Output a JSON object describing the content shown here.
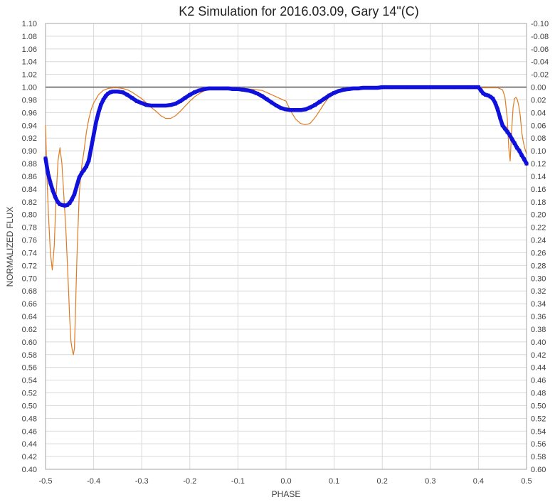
{
  "chart_data": {
    "type": "scatter",
    "title": "K2 Simulation for 2016.03.09, Gary 14\"(C)",
    "xlabel": "PHASE",
    "ylabel": "NORMALIZED FLUX",
    "xlim": [
      -0.5,
      0.5
    ],
    "ylim": [
      0.4,
      1.1
    ],
    "y2lim": [
      0.6,
      -0.1
    ],
    "grid": true,
    "reference_line": 1.0,
    "x_ticks": [
      "-0.5",
      "-0.4",
      "-0.3",
      "-0.2",
      "-0.1",
      "0.0",
      "0.1",
      "0.2",
      "0.3",
      "0.4",
      "0.5"
    ],
    "y_ticks": [
      "1.10",
      "1.08",
      "1.06",
      "1.04",
      "1.02",
      "1.00",
      "0.98",
      "0.96",
      "0.94",
      "0.92",
      "0.90",
      "0.88",
      "0.86",
      "0.84",
      "0.82",
      "0.80",
      "0.78",
      "0.76",
      "0.74",
      "0.72",
      "0.70",
      "0.68",
      "0.66",
      "0.64",
      "0.62",
      "0.60",
      "0.58",
      "0.56",
      "0.54",
      "0.52",
      "0.50",
      "0.48",
      "0.46",
      "0.44",
      "0.42",
      "0.40"
    ],
    "y2_ticks": [
      "-0.10",
      "-0.08",
      "-0.06",
      "-0.04",
      "-0.02",
      "0.00",
      "0.02",
      "0.04",
      "0.06",
      "0.08",
      "0.10",
      "0.12",
      "0.14",
      "0.16",
      "0.18",
      "0.20",
      "0.22",
      "0.24",
      "0.26",
      "0.28",
      "0.30",
      "0.32",
      "0.34",
      "0.36",
      "0.38",
      "0.40",
      "0.42",
      "0.44",
      "0.46",
      "0.48",
      "0.50",
      "0.52",
      "0.54",
      "0.56",
      "0.58",
      "0.60"
    ],
    "series": [
      {
        "color": "#e07b22",
        "style": "thin-line",
        "x": [
          -0.5,
          -0.497,
          -0.494,
          -0.49,
          -0.486,
          -0.482,
          -0.478,
          -0.474,
          -0.47,
          -0.466,
          -0.462,
          -0.458,
          -0.455,
          -0.452,
          -0.45,
          -0.447,
          -0.444,
          -0.442,
          -0.44,
          -0.438,
          -0.436,
          -0.434,
          -0.432,
          -0.43,
          -0.427,
          -0.424,
          -0.42,
          -0.415,
          -0.41,
          -0.405,
          -0.4,
          -0.39,
          -0.38,
          -0.37,
          -0.36,
          -0.35,
          -0.34,
          -0.33,
          -0.32,
          -0.31,
          -0.3,
          -0.29,
          -0.28,
          -0.27,
          -0.26,
          -0.25,
          -0.24,
          -0.23,
          -0.22,
          -0.21,
          -0.2,
          -0.19,
          -0.18,
          -0.17,
          -0.16,
          -0.15,
          -0.1,
          -0.05,
          0.0,
          0.01,
          0.02,
          0.03,
          0.04,
          0.05,
          0.06,
          0.07,
          0.08,
          0.09,
          0.1,
          0.11,
          0.12,
          0.15,
          0.2,
          0.25,
          0.3,
          0.35,
          0.4,
          0.42,
          0.44,
          0.45,
          0.455,
          0.46,
          0.463,
          0.466,
          0.469,
          0.472,
          0.475,
          0.478,
          0.481,
          0.484,
          0.487,
          0.49,
          0.493,
          0.496,
          0.5
        ],
        "y": [
          0.94,
          0.86,
          0.8,
          0.74,
          0.713,
          0.75,
          0.83,
          0.885,
          0.905,
          0.88,
          0.83,
          0.78,
          0.73,
          0.68,
          0.64,
          0.6,
          0.585,
          0.58,
          0.59,
          0.64,
          0.7,
          0.75,
          0.79,
          0.83,
          0.86,
          0.88,
          0.9,
          0.93,
          0.95,
          0.965,
          0.975,
          0.988,
          0.995,
          0.998,
          0.999,
          0.999,
          0.998,
          0.996,
          0.992,
          0.987,
          0.982,
          0.975,
          0.968,
          0.962,
          0.955,
          0.951,
          0.951,
          0.955,
          0.962,
          0.97,
          0.978,
          0.985,
          0.99,
          0.994,
          0.997,
          0.998,
          0.999,
          0.995,
          0.978,
          0.962,
          0.95,
          0.943,
          0.941,
          0.943,
          0.952,
          0.963,
          0.975,
          0.985,
          0.991,
          0.995,
          0.997,
          0.999,
          0.999,
          0.999,
          0.999,
          0.999,
          0.999,
          0.999,
          0.999,
          0.996,
          0.985,
          0.95,
          0.905,
          0.884,
          0.93,
          0.968,
          0.982,
          0.984,
          0.98,
          0.97,
          0.955,
          0.93,
          0.915,
          0.905,
          0.895
        ]
      },
      {
        "color": "#1010dd",
        "style": "markers",
        "x": [
          -0.5,
          -0.495,
          -0.49,
          -0.485,
          -0.48,
          -0.475,
          -0.47,
          -0.465,
          -0.46,
          -0.455,
          -0.45,
          -0.445,
          -0.44,
          -0.435,
          -0.43,
          -0.425,
          -0.42,
          -0.415,
          -0.41,
          -0.405,
          -0.4,
          -0.395,
          -0.39,
          -0.385,
          -0.38,
          -0.375,
          -0.37,
          -0.365,
          -0.36,
          -0.35,
          -0.34,
          -0.33,
          -0.32,
          -0.31,
          -0.3,
          -0.29,
          -0.28,
          -0.27,
          -0.26,
          -0.25,
          -0.24,
          -0.23,
          -0.22,
          -0.21,
          -0.2,
          -0.19,
          -0.18,
          -0.17,
          -0.16,
          -0.15,
          -0.14,
          -0.13,
          -0.12,
          -0.11,
          -0.1,
          -0.09,
          -0.08,
          -0.07,
          -0.06,
          -0.05,
          -0.04,
          -0.03,
          -0.02,
          -0.01,
          0.0,
          0.01,
          0.02,
          0.03,
          0.04,
          0.05,
          0.06,
          0.07,
          0.08,
          0.09,
          0.1,
          0.11,
          0.12,
          0.13,
          0.14,
          0.15,
          0.16,
          0.17,
          0.18,
          0.19,
          0.2,
          0.22,
          0.25,
          0.3,
          0.35,
          0.38,
          0.4,
          0.405,
          0.41,
          0.415,
          0.42,
          0.425,
          0.43,
          0.435,
          0.44,
          0.445,
          0.45,
          0.455,
          0.46,
          0.465,
          0.47,
          0.475,
          0.48,
          0.485,
          0.49,
          0.495,
          0.5
        ],
        "y": [
          0.888,
          0.865,
          0.85,
          0.838,
          0.828,
          0.82,
          0.816,
          0.815,
          0.814,
          0.815,
          0.818,
          0.824,
          0.832,
          0.845,
          0.858,
          0.865,
          0.87,
          0.876,
          0.885,
          0.905,
          0.925,
          0.945,
          0.96,
          0.972,
          0.98,
          0.986,
          0.99,
          0.992,
          0.993,
          0.993,
          0.992,
          0.988,
          0.983,
          0.978,
          0.975,
          0.972,
          0.971,
          0.971,
          0.971,
          0.971,
          0.972,
          0.974,
          0.978,
          0.983,
          0.988,
          0.992,
          0.995,
          0.997,
          0.998,
          0.998,
          0.998,
          0.998,
          0.998,
          0.997,
          0.997,
          0.996,
          0.995,
          0.993,
          0.99,
          0.986,
          0.981,
          0.976,
          0.971,
          0.967,
          0.965,
          0.964,
          0.964,
          0.964,
          0.965,
          0.968,
          0.972,
          0.977,
          0.982,
          0.987,
          0.991,
          0.994,
          0.996,
          0.997,
          0.998,
          0.998,
          0.999,
          0.999,
          0.999,
          0.999,
          1.0,
          1.0,
          1.0,
          1.0,
          1.0,
          1.0,
          1.0,
          0.995,
          0.99,
          0.988,
          0.987,
          0.985,
          0.982,
          0.975,
          0.965,
          0.952,
          0.94,
          0.935,
          0.93,
          0.925,
          0.918,
          0.912,
          0.905,
          0.9,
          0.893,
          0.887,
          0.88
        ]
      }
    ]
  }
}
